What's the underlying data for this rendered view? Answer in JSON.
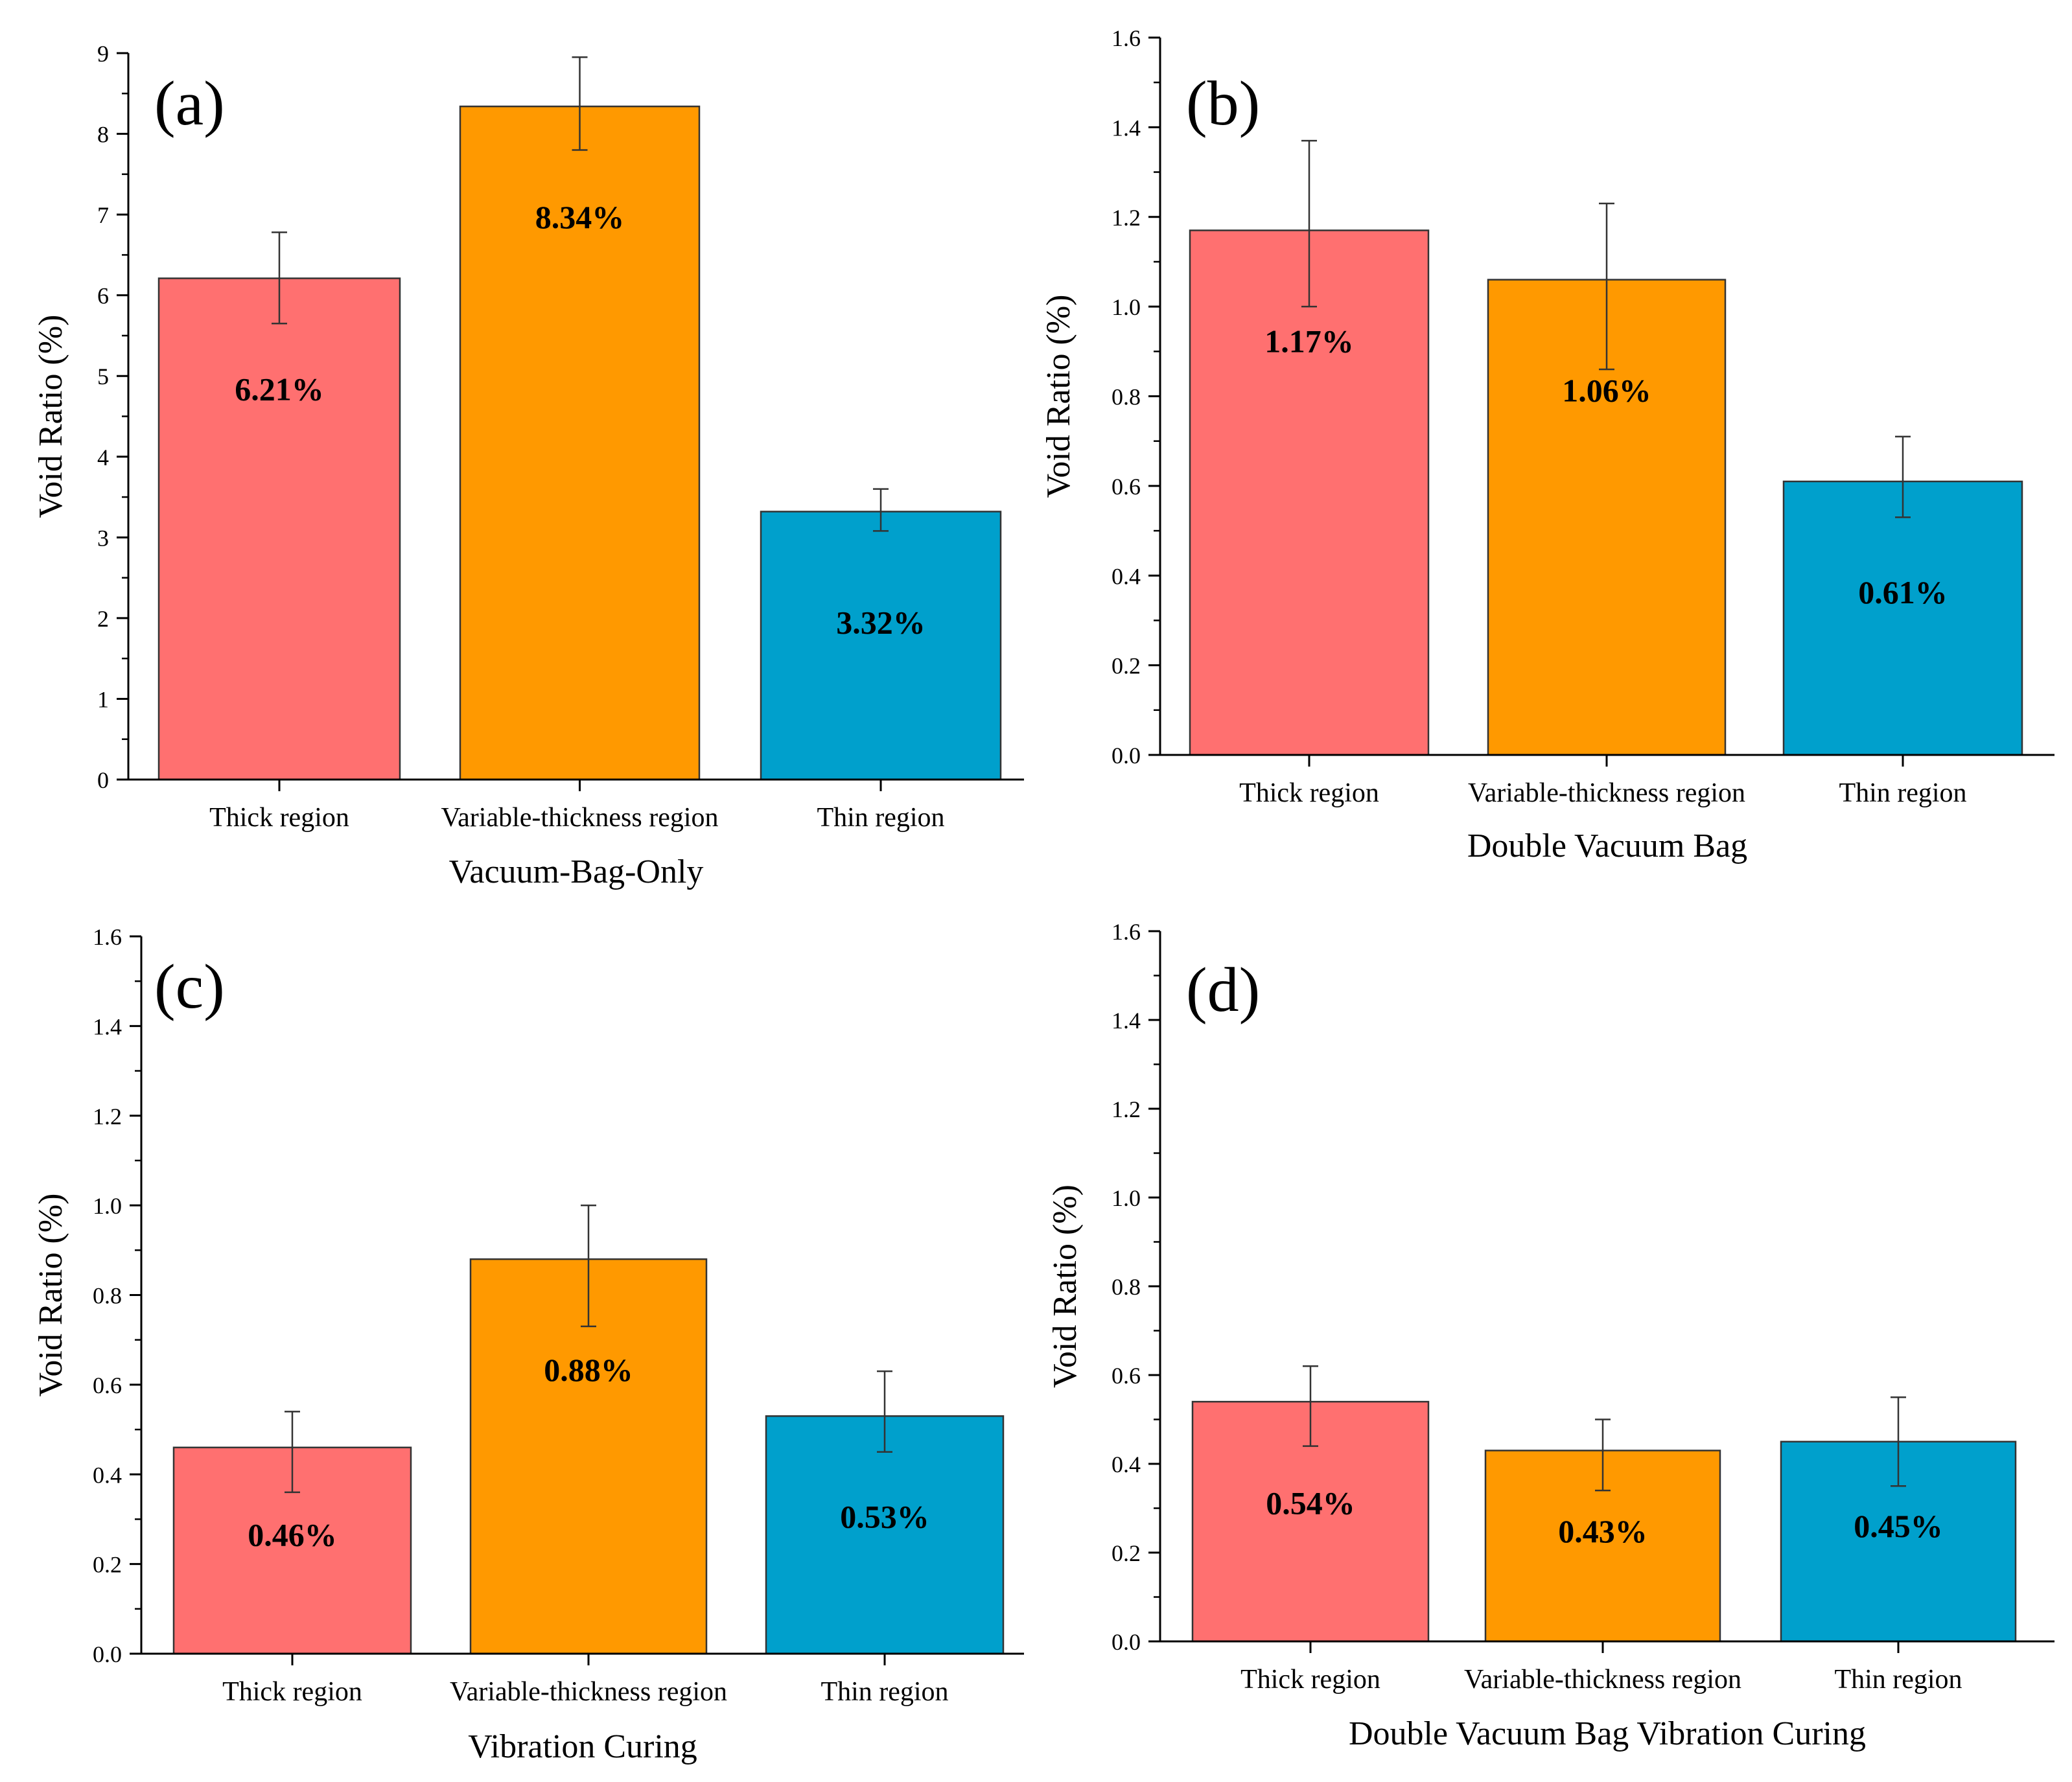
{
  "colors": {
    "thick": "#ff7070",
    "variable": "#ff9900",
    "thin": "#00a0cc",
    "edge": "#333333"
  },
  "chart_data": [
    {
      "type": "bar",
      "panel": "(a)",
      "xlabel": "Vacuum-Bag-Only",
      "ylabel": "Void Ratio (%)",
      "ylim": [
        0,
        9
      ],
      "yticks": [
        "0",
        "1",
        "2",
        "3",
        "4",
        "5",
        "6",
        "7",
        "8",
        "9"
      ],
      "categories": [
        "Thick region",
        "Variable-thickness region",
        "Thin region"
      ],
      "values": [
        6.21,
        8.34,
        3.32
      ],
      "errors": [
        [
          5.65,
          6.78
        ],
        [
          7.8,
          8.95
        ],
        [
          3.08,
          3.6
        ]
      ],
      "data_labels": [
        "6.21%",
        "8.34%",
        "3.32%"
      ]
    },
    {
      "type": "bar",
      "panel": "(b)",
      "xlabel": "Double Vacuum Bag",
      "ylabel": "Void Ratio (%)",
      "ylim": [
        0,
        1.6
      ],
      "yticks": [
        "0.0",
        "0.2",
        "0.4",
        "0.6",
        "0.8",
        "1.0",
        "1.2",
        "1.4",
        "1.6"
      ],
      "categories": [
        "Thick region",
        "Variable-thickness region",
        "Thin region"
      ],
      "values": [
        1.17,
        1.06,
        0.61
      ],
      "errors": [
        [
          1.0,
          1.37
        ],
        [
          0.86,
          1.23
        ],
        [
          0.53,
          0.71
        ]
      ],
      "data_labels": [
        "1.17%",
        "1.06%",
        "0.61%"
      ]
    },
    {
      "type": "bar",
      "panel": "(c)",
      "xlabel": "Vibration Curing",
      "ylabel": "Void Ratio (%)",
      "ylim": [
        0,
        1.6
      ],
      "yticks": [
        "0.0",
        "0.2",
        "0.4",
        "0.6",
        "0.8",
        "1.0",
        "1.2",
        "1.4",
        "1.6"
      ],
      "categories": [
        "Thick region",
        "Variable-thickness region",
        "Thin region"
      ],
      "values": [
        0.46,
        0.88,
        0.53
      ],
      "errors": [
        [
          0.36,
          0.54
        ],
        [
          0.73,
          1.0
        ],
        [
          0.45,
          0.63
        ]
      ],
      "data_labels": [
        "0.46%",
        "0.88%",
        "0.53%"
      ]
    },
    {
      "type": "bar",
      "panel": "(d)",
      "xlabel": "Double Vacuum Bag Vibration Curing",
      "ylabel": "Void Ratio (%)",
      "ylim": [
        0,
        1.6
      ],
      "yticks": [
        "0.0",
        "0.2",
        "0.4",
        "0.6",
        "0.8",
        "1.0",
        "1.2",
        "1.4",
        "1.6"
      ],
      "categories": [
        "Thick region",
        "Variable-thickness region",
        "Thin region"
      ],
      "values": [
        0.54,
        0.43,
        0.45
      ],
      "errors": [
        [
          0.44,
          0.62
        ],
        [
          0.34,
          0.5
        ],
        [
          0.35,
          0.55
        ]
      ],
      "data_labels": [
        "0.54%",
        "0.43%",
        "0.45%"
      ]
    }
  ]
}
